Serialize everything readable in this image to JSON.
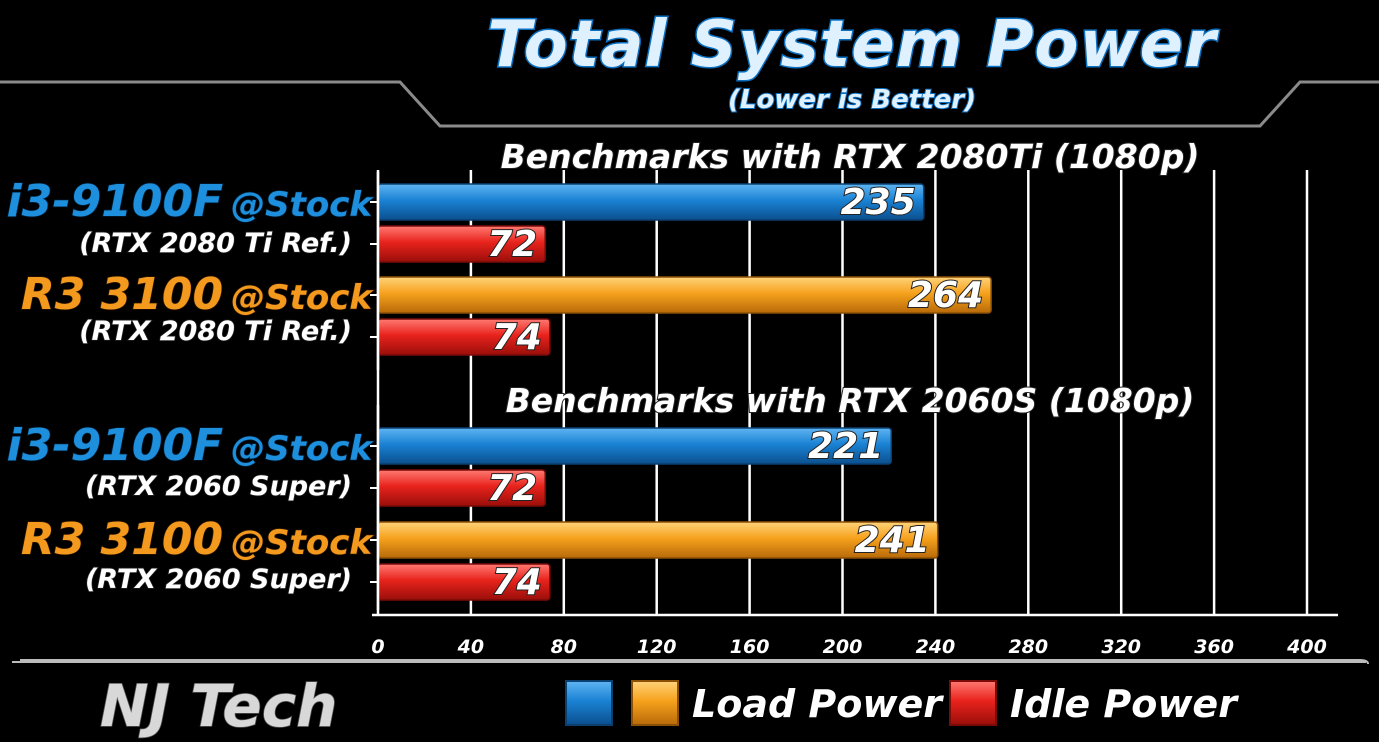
{
  "header": {
    "title": "Total System Power",
    "subtitle": "(Lower is Better)"
  },
  "footer": {
    "brand": "NJ Tech"
  },
  "legend": {
    "load_label": "Load Power",
    "idle_label": "Idle Power"
  },
  "colors": {
    "intel_load": "#1a82d4",
    "amd_load": "#f6a21d",
    "idle": "#e8231c",
    "grid": "#ffffff"
  },
  "chart_data": {
    "type": "bar",
    "orientation": "horizontal",
    "xlim": [
      0,
      400
    ],
    "xticks": [
      0,
      40,
      80,
      120,
      160,
      200,
      240,
      280,
      320,
      360,
      400
    ],
    "grid": true,
    "legend_position": "bottom",
    "groups": [
      {
        "title": "Benchmarks with RTX 2080Ti (1080p)",
        "entries": [
          {
            "cpu": "i3-9100F",
            "setting": "@Stock",
            "gpu": "(RTX 2080 Ti Ref.)",
            "vendor": "intel",
            "load": 235,
            "idle": 72
          },
          {
            "cpu": "R3 3100",
            "setting": "@Stock",
            "gpu": "(RTX 2080 Ti Ref.)",
            "vendor": "amd",
            "load": 264,
            "idle": 74
          }
        ]
      },
      {
        "title": "Benchmarks with RTX 2060S (1080p)",
        "entries": [
          {
            "cpu": "i3-9100F",
            "setting": "@Stock",
            "gpu": "(RTX 2060 Super)",
            "vendor": "intel",
            "load": 221,
            "idle": 72
          },
          {
            "cpu": "R3 3100",
            "setting": "@Stock",
            "gpu": "(RTX 2060 Super)",
            "vendor": "amd",
            "load": 241,
            "idle": 74
          }
        ]
      }
    ]
  }
}
